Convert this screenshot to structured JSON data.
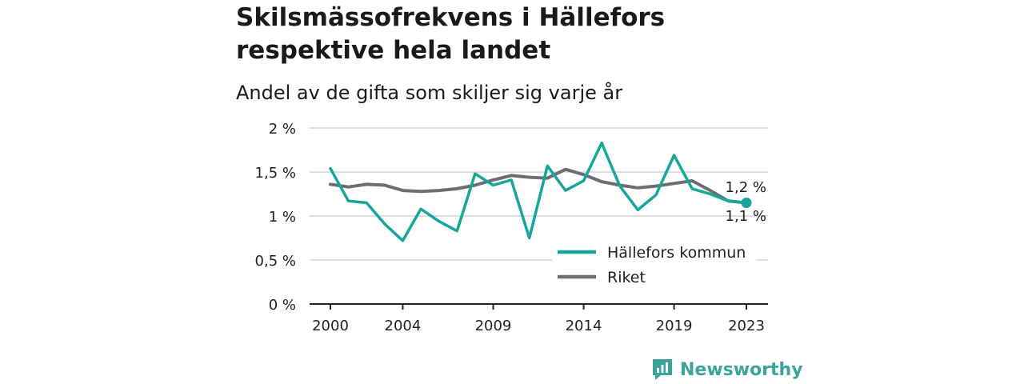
{
  "title": "Skilsmässofrekvens i Hällefors respektive hela landet",
  "subtitle": "Andel av de gifta som skiljer sig varje år",
  "brand": "Newsworthy",
  "colors": {
    "hallefors": "#16a79b",
    "riket": "#6d6d72",
    "grid": "#d4d4d4",
    "axis": "#222222",
    "brand": "#3aa39a"
  },
  "chart_data": {
    "type": "line",
    "x": [
      2000,
      2001,
      2002,
      2003,
      2004,
      2005,
      2006,
      2007,
      2008,
      2009,
      2010,
      2011,
      2012,
      2013,
      2014,
      2015,
      2016,
      2017,
      2018,
      2019,
      2020,
      2021,
      2022,
      2023
    ],
    "series": [
      {
        "name": "Hällefors kommun",
        "color": "#16a79b",
        "values": [
          1.54,
          1.17,
          1.15,
          0.91,
          0.72,
          1.08,
          0.94,
          0.83,
          1.48,
          1.35,
          1.41,
          0.75,
          1.57,
          1.29,
          1.4,
          1.83,
          1.34,
          1.07,
          1.24,
          1.69,
          1.31,
          1.25,
          1.17,
          1.15
        ]
      },
      {
        "name": "Riket",
        "color": "#6d6d72",
        "values": [
          1.36,
          1.33,
          1.36,
          1.35,
          1.29,
          1.28,
          1.29,
          1.31,
          1.35,
          1.41,
          1.46,
          1.44,
          1.43,
          1.53,
          1.47,
          1.39,
          1.35,
          1.32,
          1.34,
          1.37,
          1.4,
          1.29,
          1.17,
          1.15
        ]
      }
    ],
    "yticks": [
      0,
      0.5,
      1,
      1.5,
      2
    ],
    "ytick_labels": [
      "0 %",
      "0,5 %",
      "1 %",
      "1,5 %",
      "2 %"
    ],
    "xticks": [
      2000,
      2004,
      2009,
      2014,
      2019,
      2023
    ],
    "xtick_labels": [
      "2000",
      "2004",
      "2009",
      "2014",
      "2019",
      "2023"
    ],
    "ylim": [
      0,
      2
    ],
    "end_labels": {
      "hallefors": "1,2 %",
      "riket": "1,1 %"
    },
    "legend_position": "lower-right",
    "grid": true
  }
}
